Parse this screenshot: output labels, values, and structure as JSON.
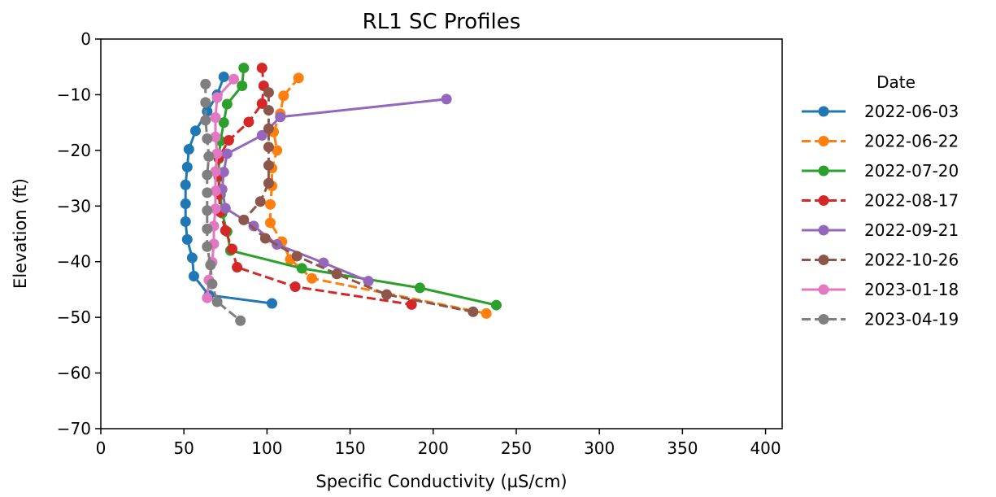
{
  "chart_data": {
    "type": "line",
    "title": "RL1 SC Profiles",
    "xlabel": "Specific Conductivity (µS/cm)",
    "ylabel": "Elevation (ft)",
    "xlim": [
      0,
      410
    ],
    "ylim": [
      -70,
      0
    ],
    "xticks": [
      0,
      50,
      100,
      150,
      200,
      250,
      300,
      350,
      400
    ],
    "yticks": [
      0,
      -10,
      -20,
      -30,
      -40,
      -50,
      -60,
      -70
    ],
    "xtick_labels": [
      "0",
      "50",
      "100",
      "150",
      "200",
      "250",
      "300",
      "350",
      "400"
    ],
    "ytick_labels": [
      "0",
      "−10",
      "−20",
      "−30",
      "−40",
      "−50",
      "−60",
      "−70"
    ],
    "grid": false,
    "legend_title": "Date",
    "legend_position": "outside-right",
    "series": [
      {
        "name": "2022-06-03",
        "color": "#1f77b4",
        "style": "solid",
        "points": [
          [
            74,
            -6.8
          ],
          [
            70,
            -10
          ],
          [
            64,
            -13
          ],
          [
            57,
            -16.5
          ],
          [
            53,
            -19.8
          ],
          [
            52,
            -23
          ],
          [
            51,
            -26.2
          ],
          [
            51,
            -29.6
          ],
          [
            51,
            -32.8
          ],
          [
            52,
            -36
          ],
          [
            55,
            -39.3
          ],
          [
            56,
            -42.6
          ],
          [
            65,
            -46
          ],
          [
            103,
            -47.5
          ]
        ]
      },
      {
        "name": "2022-06-22",
        "color": "#ff7f0e",
        "style": "dashed",
        "points": [
          [
            119,
            -7
          ],
          [
            110,
            -10.2
          ],
          [
            108,
            -13.4
          ],
          [
            104,
            -16.7
          ],
          [
            106,
            -20
          ],
          [
            103,
            -23.2
          ],
          [
            103,
            -26.4
          ],
          [
            102,
            -29.7
          ],
          [
            102,
            -33
          ],
          [
            109,
            -36.4
          ],
          [
            114,
            -39.6
          ],
          [
            127,
            -43
          ],
          [
            232,
            -49.3
          ]
        ]
      },
      {
        "name": "2022-07-20",
        "color": "#2ca02c",
        "style": "solid",
        "points": [
          [
            86,
            -5.2
          ],
          [
            85,
            -8.4
          ],
          [
            76,
            -11.7
          ],
          [
            74,
            -15
          ],
          [
            72,
            -18.3
          ],
          [
            71,
            -21.5
          ],
          [
            71,
            -24.8
          ],
          [
            72,
            -28
          ],
          [
            73,
            -31.3
          ],
          [
            76,
            -34.6
          ],
          [
            78,
            -38
          ],
          [
            121,
            -41.2
          ],
          [
            192,
            -44.7
          ],
          [
            238,
            -47.8
          ]
        ]
      },
      {
        "name": "2022-08-17",
        "color": "#d62728",
        "style": "dashed",
        "points": [
          [
            97,
            -5.2
          ],
          [
            98,
            -8.4
          ],
          [
            97,
            -11.6
          ],
          [
            89,
            -14.9
          ],
          [
            77,
            -18.2
          ],
          [
            71,
            -21.3
          ],
          [
            71,
            -24.6
          ],
          [
            71,
            -27.9
          ],
          [
            72,
            -31.1
          ],
          [
            75,
            -34.4
          ],
          [
            79,
            -37.7
          ],
          [
            82,
            -41
          ],
          [
            117,
            -44.5
          ],
          [
            187,
            -47.7
          ]
        ]
      },
      {
        "name": "2022-09-21",
        "color": "#9467bd",
        "style": "solid",
        "points": [
          [
            208,
            -10.8
          ],
          [
            108,
            -14
          ],
          [
            97,
            -17.3
          ],
          [
            76,
            -20.6
          ],
          [
            74,
            -23.9
          ],
          [
            73,
            -27
          ],
          [
            75,
            -30.4
          ],
          [
            92,
            -33.6
          ],
          [
            106,
            -36.9
          ],
          [
            134,
            -40.2
          ],
          [
            161,
            -43.5
          ]
        ]
      },
      {
        "name": "2022-10-26",
        "color": "#8c564b",
        "style": "dashed",
        "points": [
          [
            101,
            -9.6
          ],
          [
            101,
            -12.8
          ],
          [
            101,
            -16.1
          ],
          [
            101,
            -19.4
          ],
          [
            101,
            -22.7
          ],
          [
            101,
            -25.9
          ],
          [
            96,
            -29.2
          ],
          [
            86,
            -32.5
          ],
          [
            99,
            -35.8
          ],
          [
            118,
            -39
          ],
          [
            142,
            -42.2
          ],
          [
            172,
            -45.9
          ],
          [
            224,
            -49
          ]
        ]
      },
      {
        "name": "2023-01-18",
        "color": "#e377c2",
        "style": "solid",
        "points": [
          [
            80,
            -7.2
          ],
          [
            70,
            -10.5
          ],
          [
            69,
            -14.1
          ],
          [
            69,
            -17.6
          ],
          [
            70,
            -20.6
          ],
          [
            69,
            -23.8
          ],
          [
            69,
            -27.3
          ],
          [
            69,
            -30.5
          ],
          [
            68,
            -33.6
          ],
          [
            68,
            -36.8
          ],
          [
            67,
            -40.1
          ],
          [
            65,
            -43.3
          ],
          [
            64,
            -46.5
          ]
        ]
      },
      {
        "name": "2023-04-19",
        "color": "#7f7f7f",
        "style": "dashed",
        "points": [
          [
            63,
            -8.1
          ],
          [
            63,
            -11.4
          ],
          [
            63,
            -14.6
          ],
          [
            64,
            -17.9
          ],
          [
            65,
            -21.1
          ],
          [
            64,
            -24.4
          ],
          [
            64,
            -27.6
          ],
          [
            64,
            -30.8
          ],
          [
            64,
            -34.1
          ],
          [
            64,
            -37.3
          ],
          [
            66,
            -40.6
          ],
          [
            67,
            -44
          ],
          [
            70,
            -47.2
          ],
          [
            84,
            -50.6
          ]
        ]
      }
    ]
  }
}
